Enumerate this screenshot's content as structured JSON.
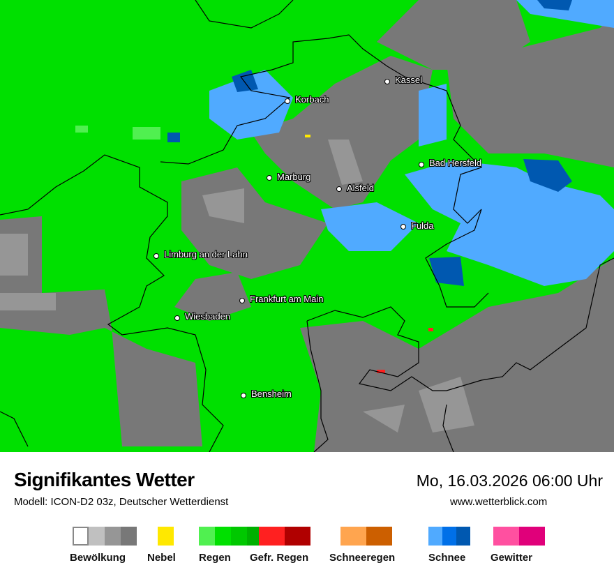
{
  "header": {
    "title": "Signifikantes Wetter",
    "subtitle": "Modell: ICON-D2 03z, Deutscher Wetterdienst",
    "datetime": "Mo, 16.03.2026 06:00 Uhr",
    "website": "www.wetterblick.com"
  },
  "cities": [
    {
      "name": "Kassel"
    },
    {
      "name": "Korbach"
    },
    {
      "name": "Bad Hersfeld"
    },
    {
      "name": "Marburg"
    },
    {
      "name": "Alsfeld"
    },
    {
      "name": "Fulda"
    },
    {
      "name": "Limburg an der Lahn"
    },
    {
      "name": "Frankfurt am Main"
    },
    {
      "name": "Wiesbaden"
    },
    {
      "name": "Bensheim"
    }
  ],
  "legend": [
    {
      "label": "Bewölkung",
      "colors": [
        "#ffffff",
        "#c0c0c0",
        "#969696",
        "#787878"
      ]
    },
    {
      "label": "Nebel",
      "colors": [
        "#ffe800"
      ]
    },
    {
      "label": "Regen",
      "colors": [
        "#50f050",
        "#00e000",
        "#00c800",
        "#00b000"
      ]
    },
    {
      "label": "Gefr. Regen",
      "colors": [
        "#ff2020",
        "#b00000"
      ]
    },
    {
      "label": "Schneeregen",
      "colors": [
        "#ffa54f",
        "#cc5f00"
      ]
    },
    {
      "label": "Schnee",
      "colors": [
        "#50aaff",
        "#0070e8",
        "#0058b0"
      ]
    },
    {
      "label": "Gewitter",
      "colors": [
        "#ff50a0",
        "#e0007a"
      ]
    }
  ]
}
